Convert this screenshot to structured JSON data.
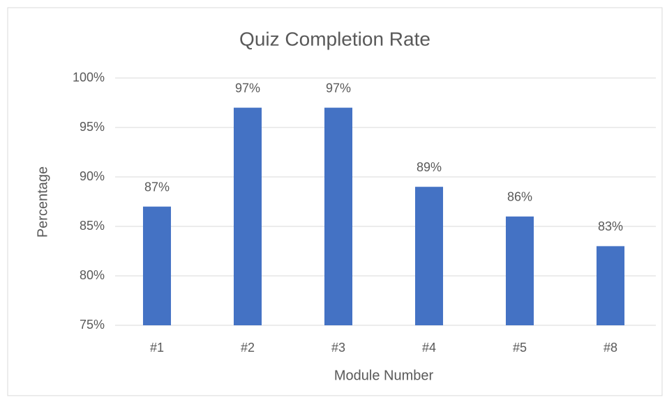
{
  "chart_data": {
    "type": "bar",
    "title": "Quiz Completion Rate",
    "x_label": "Module Number",
    "y_label": "Percentage",
    "categories": [
      "#1",
      "#2",
      "#3",
      "#4",
      "#5",
      "#8"
    ],
    "values": [
      87,
      97,
      97,
      89,
      86,
      83
    ],
    "value_labels": [
      "87%",
      "97%",
      "97%",
      "89%",
      "86%",
      "83%"
    ],
    "color": "#4472c4",
    "ylim": [
      75,
      100
    ],
    "yticks": [
      {
        "value": 75,
        "label": "75%"
      },
      {
        "value": 80,
        "label": "80%"
      },
      {
        "value": 85,
        "label": "85%"
      },
      {
        "value": 90,
        "label": "90%"
      },
      {
        "value": 95,
        "label": "95%"
      },
      {
        "value": 100,
        "label": "100%"
      }
    ],
    "grid": true
  }
}
